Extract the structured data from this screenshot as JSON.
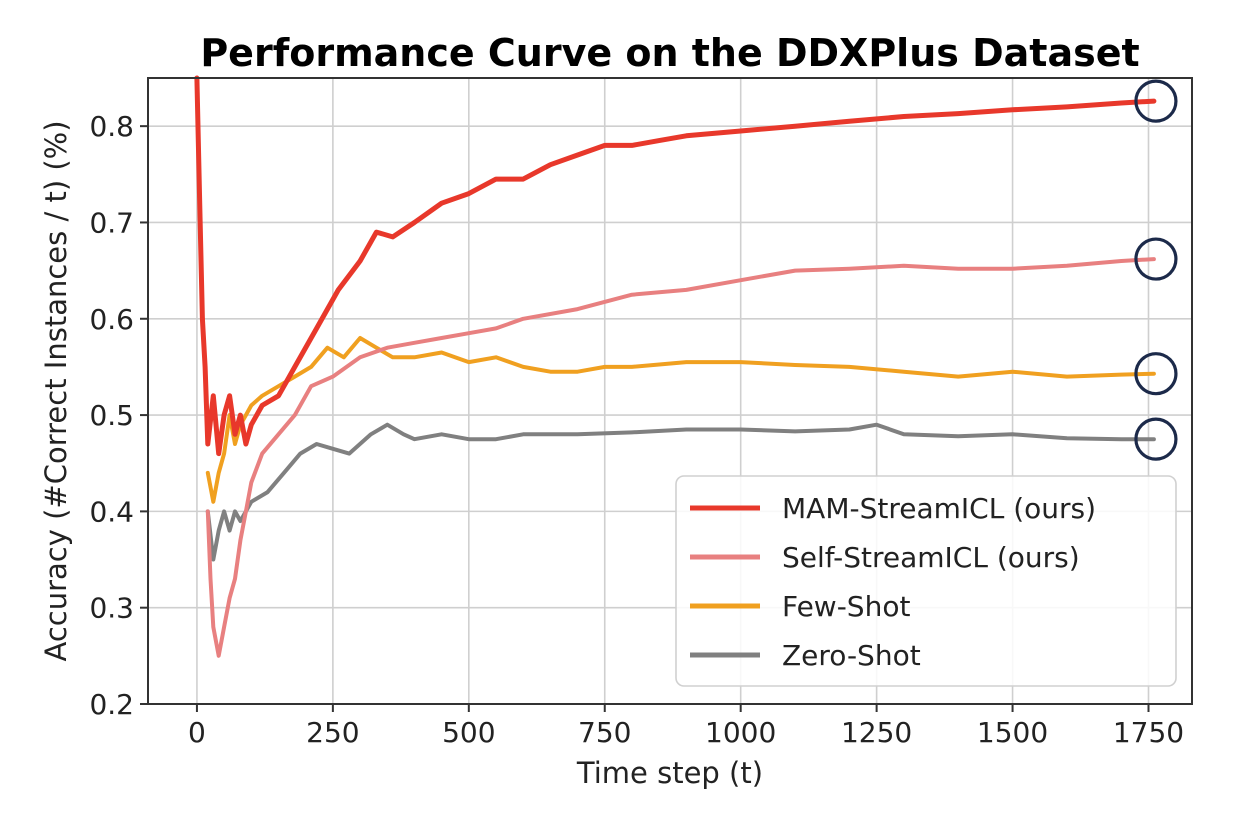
{
  "chart_data": {
    "type": "line",
    "title": "Performance Curve on the DDXPlus Dataset",
    "xlabel": "Time step (t)",
    "ylabel": "Accuracy (#Correct Instances / t) (%)",
    "xlim": [
      -90,
      1830
    ],
    "ylim": [
      0.2,
      0.85
    ],
    "xticks": [
      0,
      250,
      500,
      750,
      1000,
      1250,
      1500,
      1750
    ],
    "yticks": [
      0.2,
      0.3,
      0.4,
      0.5,
      0.6,
      0.7,
      0.8
    ],
    "grid": true,
    "legend_position": "lower-right",
    "circle_color": "#1c2a4a",
    "series": [
      {
        "name": "MAM-StreamICL (ours)",
        "color": "#e8382b",
        "points": [
          [
            0,
            0.85
          ],
          [
            5,
            0.72
          ],
          [
            10,
            0.6
          ],
          [
            15,
            0.55
          ],
          [
            20,
            0.47
          ],
          [
            30,
            0.52
          ],
          [
            40,
            0.46
          ],
          [
            50,
            0.5
          ],
          [
            60,
            0.52
          ],
          [
            70,
            0.48
          ],
          [
            80,
            0.5
          ],
          [
            90,
            0.47
          ],
          [
            100,
            0.49
          ],
          [
            120,
            0.51
          ],
          [
            150,
            0.52
          ],
          [
            180,
            0.55
          ],
          [
            220,
            0.59
          ],
          [
            260,
            0.63
          ],
          [
            300,
            0.66
          ],
          [
            330,
            0.69
          ],
          [
            360,
            0.685
          ],
          [
            400,
            0.7
          ],
          [
            450,
            0.72
          ],
          [
            500,
            0.73
          ],
          [
            550,
            0.745
          ],
          [
            600,
            0.745
          ],
          [
            650,
            0.76
          ],
          [
            700,
            0.77
          ],
          [
            750,
            0.78
          ],
          [
            800,
            0.78
          ],
          [
            850,
            0.785
          ],
          [
            900,
            0.79
          ],
          [
            1000,
            0.795
          ],
          [
            1100,
            0.8
          ],
          [
            1200,
            0.805
          ],
          [
            1300,
            0.81
          ],
          [
            1400,
            0.813
          ],
          [
            1500,
            0.817
          ],
          [
            1600,
            0.82
          ],
          [
            1700,
            0.824
          ],
          [
            1760,
            0.826
          ]
        ]
      },
      {
        "name": "Self-StreamICL (ours)",
        "color": "#e88080",
        "points": [
          [
            20,
            0.4
          ],
          [
            25,
            0.33
          ],
          [
            30,
            0.28
          ],
          [
            40,
            0.25
          ],
          [
            50,
            0.28
          ],
          [
            60,
            0.31
          ],
          [
            70,
            0.33
          ],
          [
            80,
            0.37
          ],
          [
            90,
            0.4
          ],
          [
            100,
            0.43
          ],
          [
            120,
            0.46
          ],
          [
            150,
            0.48
          ],
          [
            180,
            0.5
          ],
          [
            210,
            0.53
          ],
          [
            250,
            0.54
          ],
          [
            300,
            0.56
          ],
          [
            350,
            0.57
          ],
          [
            400,
            0.575
          ],
          [
            450,
            0.58
          ],
          [
            500,
            0.585
          ],
          [
            550,
            0.59
          ],
          [
            600,
            0.6
          ],
          [
            700,
            0.61
          ],
          [
            800,
            0.625
          ],
          [
            900,
            0.63
          ],
          [
            1000,
            0.64
          ],
          [
            1100,
            0.65
          ],
          [
            1200,
            0.652
          ],
          [
            1300,
            0.655
          ],
          [
            1400,
            0.652
          ],
          [
            1500,
            0.652
          ],
          [
            1600,
            0.655
          ],
          [
            1700,
            0.66
          ],
          [
            1760,
            0.662
          ]
        ]
      },
      {
        "name": "Few-Shot",
        "color": "#f0a020",
        "points": [
          [
            20,
            0.44
          ],
          [
            30,
            0.41
          ],
          [
            40,
            0.44
          ],
          [
            50,
            0.46
          ],
          [
            60,
            0.5
          ],
          [
            70,
            0.47
          ],
          [
            80,
            0.49
          ],
          [
            90,
            0.5
          ],
          [
            100,
            0.51
          ],
          [
            120,
            0.52
          ],
          [
            150,
            0.53
          ],
          [
            180,
            0.54
          ],
          [
            210,
            0.55
          ],
          [
            240,
            0.57
          ],
          [
            270,
            0.56
          ],
          [
            300,
            0.58
          ],
          [
            330,
            0.57
          ],
          [
            360,
            0.56
          ],
          [
            400,
            0.56
          ],
          [
            450,
            0.565
          ],
          [
            500,
            0.555
          ],
          [
            550,
            0.56
          ],
          [
            600,
            0.55
          ],
          [
            650,
            0.545
          ],
          [
            700,
            0.545
          ],
          [
            750,
            0.55
          ],
          [
            800,
            0.55
          ],
          [
            900,
            0.555
          ],
          [
            1000,
            0.555
          ],
          [
            1100,
            0.552
          ],
          [
            1200,
            0.55
          ],
          [
            1300,
            0.545
          ],
          [
            1400,
            0.54
          ],
          [
            1500,
            0.545
          ],
          [
            1600,
            0.54
          ],
          [
            1700,
            0.542
          ],
          [
            1760,
            0.543
          ]
        ]
      },
      {
        "name": "Zero-Shot",
        "color": "#808080",
        "points": [
          [
            20,
            0.4
          ],
          [
            30,
            0.35
          ],
          [
            40,
            0.38
          ],
          [
            50,
            0.4
          ],
          [
            60,
            0.38
          ],
          [
            70,
            0.4
          ],
          [
            80,
            0.39
          ],
          [
            90,
            0.4
          ],
          [
            100,
            0.41
          ],
          [
            130,
            0.42
          ],
          [
            160,
            0.44
          ],
          [
            190,
            0.46
          ],
          [
            220,
            0.47
          ],
          [
            250,
            0.465
          ],
          [
            280,
            0.46
          ],
          [
            320,
            0.48
          ],
          [
            350,
            0.49
          ],
          [
            380,
            0.48
          ],
          [
            400,
            0.475
          ],
          [
            450,
            0.48
          ],
          [
            500,
            0.475
          ],
          [
            550,
            0.475
          ],
          [
            600,
            0.48
          ],
          [
            700,
            0.48
          ],
          [
            800,
            0.482
          ],
          [
            900,
            0.485
          ],
          [
            1000,
            0.485
          ],
          [
            1100,
            0.483
          ],
          [
            1200,
            0.485
          ],
          [
            1250,
            0.49
          ],
          [
            1300,
            0.48
          ],
          [
            1400,
            0.478
          ],
          [
            1500,
            0.48
          ],
          [
            1600,
            0.476
          ],
          [
            1700,
            0.475
          ],
          [
            1760,
            0.475
          ]
        ]
      }
    ]
  }
}
